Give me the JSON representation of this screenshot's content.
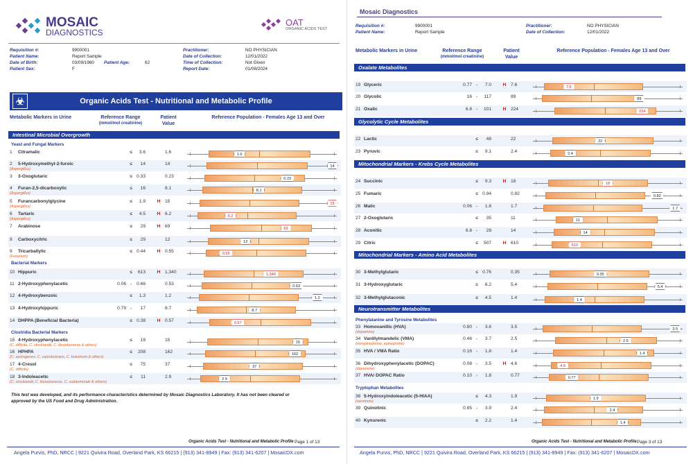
{
  "p1": {
    "logo_main": "MOSAIC",
    "logo_sub": "DIAGNOSTICS",
    "oat_title": "OAT",
    "oat_sub": "ORGANIC ACIDS TEST",
    "patient": [
      [
        "Requisition #:",
        "9900001",
        "Practitioner:",
        "NO PHYSICIAN"
      ],
      [
        "Patient Name:",
        "Report Sample",
        "Date of Collection:",
        "12/01/2022"
      ],
      [
        "Date of Birth:",
        "03/09/1960",
        "Time of Collection:",
        "Not Given"
      ],
      [
        "Patient Sex:",
        "F",
        "Report Date:",
        "01/08/2024"
      ]
    ],
    "age_label": "Patient Age:",
    "age_value": "62",
    "banner": "Organic Acids Test - Nutritional and Metabolic Profile",
    "hdr": {
      "markers": "Metabolic Markers in Urine",
      "range": "Reference Range",
      "range_unit": "(mmol/mol creatinine)",
      "patient": "Patient",
      "patient2": "Value",
      "refpop": "Reference Population - Females Age 13 and Over"
    },
    "section": "Intestinal Microbial Overgrowth",
    "sub_yeast": "Yeast and Fungal Markers",
    "sub_bact": "Bacterial Markers",
    "sub_clost": "Clostridia Bacterial Markers",
    "rows": [
      {
        "n": "1",
        "name": "Citramalic",
        "note": "",
        "lo": "",
        "hi": "3.6",
        "flag": "",
        "val": "1.6",
        "pos": 0.35
      },
      {
        "n": "2",
        "name": "5-Hydroxymethyl-2-furoic",
        "note": "(Aspergillus)",
        "lo": "",
        "hi": "14",
        "flag": "",
        "val": "14",
        "pos": 0.97
      },
      {
        "n": "3",
        "name": "3-Oxoglutaric",
        "note": "",
        "lo": "",
        "hi": "0.33",
        "flag": "",
        "val": "0.23",
        "pos": 0.67
      },
      {
        "n": "4",
        "name": "Furan-2,5-dicarboxylic",
        "note": "(Aspergillus)",
        "lo": "",
        "hi": "16",
        "flag": "",
        "val": "8.1",
        "pos": 0.48
      },
      {
        "n": "5",
        "name": "Furancarbonylglycine",
        "note": "(Aspergillus)",
        "lo": "",
        "hi": "1.9",
        "flag": "H",
        "val": "15",
        "pos": 0.97
      },
      {
        "n": "6",
        "name": "Tartaric",
        "note": "(Aspergillus)",
        "lo": "",
        "hi": "4.5",
        "flag": "H",
        "val": "6.2",
        "pos": 0.29
      },
      {
        "n": "7",
        "name": "Arabinose",
        "note": "",
        "lo": "",
        "hi": "29",
        "flag": "H",
        "val": "69",
        "pos": 0.66
      },
      {
        "n": "8",
        "name": "Carboxycitric",
        "note": "",
        "lo": "",
        "hi": "29",
        "flag": "",
        "val": "12",
        "pos": 0.39
      },
      {
        "n": "9",
        "name": "Tricarballylic",
        "note": "(Fusarium)",
        "lo": "",
        "hi": "0.44",
        "flag": "H",
        "val": "0.55",
        "pos": 0.26
      },
      {
        "n": "10",
        "name": "Hippuric",
        "note": "",
        "lo": "",
        "hi": "613",
        "flag": "H",
        "val": "1,340",
        "pos": 0.56
      },
      {
        "n": "11",
        "name": "2-Hydroxyphenylacetic",
        "note": "",
        "lo": "0.06",
        "hi": "0.66",
        "flag": "",
        "val": "0.53",
        "pos": 0.73
      },
      {
        "n": "12",
        "name": "4-Hydroxybenzoic",
        "note": "",
        "lo": "",
        "hi": "1.3",
        "flag": "",
        "val": "1.2",
        "pos": 0.87
      },
      {
        "n": "13",
        "name": "4-Hydroxyhippuric",
        "note": "",
        "lo": "0.79",
        "hi": "17",
        "flag": "",
        "val": "8.7",
        "pos": 0.45
      },
      {
        "n": "14",
        "name": "DHPPA (Beneficial Bacteria)",
        "note": "",
        "lo": "",
        "hi": "0.38",
        "flag": "H",
        "val": "0.57",
        "pos": 0.34
      },
      {
        "n": "15",
        "name": "4-Hydroxyphenylacetic",
        "note": "(C. difficile, C. stricklandii, C. lituseburense & others)",
        "lo": "",
        "hi": "19",
        "flag": "",
        "val": "15",
        "pos": 0.74
      },
      {
        "n": "16",
        "name": "HPHPA",
        "note": "(C. sporogenes, C. caloritolerans, C. botulinum & others)",
        "lo": "",
        "hi": "208",
        "flag": "",
        "val": "162",
        "pos": 0.72
      },
      {
        "n": "17",
        "name": "4-Cresol",
        "note": "(C. difficile)",
        "lo": "",
        "hi": "75",
        "flag": "",
        "val": "37",
        "pos": 0.45
      },
      {
        "n": "18",
        "name": "3-Indoleacetic",
        "note": "(C. stricklandii, C. lituseburense, C. subterminale & others)",
        "lo": "",
        "hi": "11",
        "flag": "",
        "val": "2.9",
        "pos": 0.25
      }
    ],
    "disclaimer": "This test was developed, and its performance characteristics determined by Mosaic Diagnostics Laboratory. It has not been cleared or approved by the US Food and Drug Administration.",
    "footer_title": "Organic Acids Test - Nutritional and Metabolic Profile",
    "footer_page": "Page 1 of 13",
    "address": "Angela Purvis, PhD, NRCC | 9221 Quivira Road, Overland Park, KS 66215 | (913) 341-8949 | Fax: (913) 341-6207 | MosaicDX.com"
  },
  "p2": {
    "title": "Mosaic Diagnostics",
    "patient": [
      [
        "Requisition #:",
        "9900001",
        "Practitioner:",
        "NO PHYSICIAN"
      ],
      [
        "Patient Name:",
        "Report Sample",
        "Date of Collection:",
        "12/01/2022"
      ]
    ],
    "hdr": {
      "markers": "Metabolic Markers in Urine",
      "range": "Reference Range",
      "range_unit": "(mmol/mol creatinine)",
      "patient": "Patient",
      "patient2": "Value",
      "refpop": "Reference Population - Females Age 13 and Over"
    },
    "sections": [
      {
        "title": "Oxalate Metabolites",
        "sub": "",
        "rows": [
          {
            "n": "19",
            "name": "Glyceric",
            "note": "",
            "lo": "0.77",
            "hi": "7.0",
            "flag": "H",
            "val": "7.6",
            "pos": 0.24
          },
          {
            "n": "20",
            "name": "Glycolic",
            "note": "",
            "lo": "16",
            "hi": "117",
            "flag": "",
            "val": "89",
            "pos": 0.71
          },
          {
            "n": "21",
            "name": "Oxalic",
            "note": "",
            "lo": "6.8",
            "hi": "101",
            "flag": "H",
            "val": "224",
            "pos": 0.73
          }
        ]
      },
      {
        "title": "Glycolytic Cycle Metabolites",
        "sub": "",
        "rows": [
          {
            "n": "22",
            "name": "Lactic",
            "note": "",
            "lo": "",
            "hi": "48",
            "flag": "",
            "val": "22",
            "pos": 0.45
          },
          {
            "n": "23",
            "name": "Pyruvic",
            "note": "",
            "lo": "",
            "hi": "9.1",
            "flag": "",
            "val": "2.4",
            "pos": 0.25
          }
        ]
      },
      {
        "title": "Mitochondrial Markers - Krebs Cycle Metabolites",
        "sub": "",
        "rows": [
          {
            "n": "24",
            "name": "Succinic",
            "note": "",
            "lo": "",
            "hi": "9.3",
            "flag": "H",
            "val": "18",
            "pos": 0.5
          },
          {
            "n": "25",
            "name": "Fumaric",
            "note": "",
            "lo": "",
            "hi": "0.94",
            "flag": "",
            "val": "0.82",
            "pos": 0.83
          },
          {
            "n": "26",
            "name": "Malic",
            "note": "",
            "lo": "0.06",
            "hi": "1.8",
            "flag": "",
            "val": "1.7",
            "pos": 0.95
          },
          {
            "n": "27",
            "name": "2-Oxoglutaric",
            "note": "",
            "lo": "",
            "hi": "35",
            "flag": "",
            "val": "11",
            "pos": 0.3
          },
          {
            "n": "28",
            "name": "Aconitic",
            "note": "",
            "lo": "6.8",
            "hi": "28",
            "flag": "",
            "val": "14",
            "pos": 0.35
          },
          {
            "n": "29",
            "name": "Citric",
            "note": "",
            "lo": "",
            "hi": "507",
            "flag": "H",
            "val": "610",
            "pos": 0.28
          }
        ]
      },
      {
        "title": "Mitochondrial Markers - Amino Acid Metabolites",
        "sub": "",
        "rows": [
          {
            "n": "30",
            "name": "3-Methylglutaric",
            "note": "",
            "lo": "",
            "hi": "0.76",
            "flag": "",
            "val": "0.35",
            "pos": 0.45
          },
          {
            "n": "31",
            "name": "3-Hydroxyglutaric",
            "note": "",
            "lo": "",
            "hi": "6.2",
            "flag": "",
            "val": "5.4",
            "pos": 0.85
          },
          {
            "n": "32",
            "name": "3-Methylglutaconic",
            "note": "",
            "lo": "",
            "hi": "4.5",
            "flag": "",
            "val": "1.4",
            "pos": 0.31
          }
        ]
      },
      {
        "title": "Neurotransmitter Metabolites",
        "sub": "Phenylalanine and Tyrosine Metabolites",
        "rows": [
          {
            "n": "33",
            "name": "Homovanillic (HVA)",
            "note": "(dopamine)",
            "lo": "0.80",
            "hi": "3.6",
            "flag": "",
            "val": "3.5",
            "pos": 0.95
          },
          {
            "n": "34",
            "name": "Vanillylmandelic (VMA)",
            "note": "(norepinephrine, epinephrine)",
            "lo": "0.46",
            "hi": "3.7",
            "flag": "",
            "val": "2.5",
            "pos": 0.62
          },
          {
            "n": "35",
            "name": "HVA / VMA Ratio",
            "note": "",
            "lo": "0.16",
            "hi": "1.8",
            "flag": "",
            "val": "1.4",
            "pos": 0.73
          },
          {
            "n": "36",
            "name": "Dihydroxyphenylacetic (DOPAC)",
            "note": "(dopamine)",
            "lo": "0.08",
            "hi": "3.5",
            "flag": "H",
            "val": "4.6",
            "pos": 0.2
          },
          {
            "n": "37",
            "name": "HVA/ DOPAC Ratio",
            "note": "",
            "lo": "0.10",
            "hi": "1.8",
            "flag": "",
            "val": "0.77",
            "pos": 0.26
          }
        ]
      },
      {
        "title": "",
        "sub": "Tryptophan Metabolites",
        "rows": [
          {
            "n": "38",
            "name": "5-Hydroxyindoleacetic (5-HIAA)",
            "note": "(serotonin)",
            "lo": "",
            "hi": "4.3",
            "flag": "",
            "val": "1.9",
            "pos": 0.42
          },
          {
            "n": "39",
            "name": "Quinolinic",
            "note": "",
            "lo": "0.85",
            "hi": "3.9",
            "flag": "",
            "val": "2.4",
            "pos": 0.53
          },
          {
            "n": "40",
            "name": "Kynurenic",
            "note": "",
            "lo": "",
            "hi": "2.2",
            "flag": "",
            "val": "1.4",
            "pos": 0.6
          }
        ]
      }
    ],
    "footer_title": "Organic Acids Test - Nutritional and Metabolic Profile",
    "footer_page": "Page 3 of 13",
    "address": "Angela Purvis, PhD, NRCC | 9221 Quivira Road, Overland Park, KS 66215 | (913) 341-8949 | Fax: (913) 341-6207 | MosaicDX.com"
  }
}
